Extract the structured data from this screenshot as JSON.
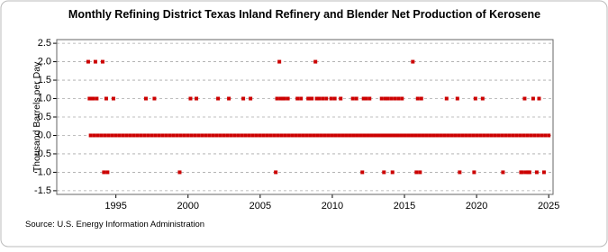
{
  "chart_data": {
    "type": "scatter",
    "title": "Monthly Refining District Texas Inland Refinery and Blender Net Production of Kerosene",
    "y_label": "Thousand Barrels per Day",
    "source": "Source: U.S. Energy Information Administration",
    "color": "#cc0000",
    "grid": true,
    "xlim": [
      1990.9,
      2025.3
    ],
    "xticks": [
      1995,
      2000,
      2005,
      2010,
      2015,
      2020,
      2025
    ],
    "ylim": [
      -1.6,
      2.6
    ],
    "yticks": [
      2.5,
      {
        "value": 2,
        "label": "2.0"
      },
      1.5,
      {
        "value": 1,
        "label": "1.0"
      },
      0.5,
      {
        "value": 0,
        "label": "0.0"
      },
      -0.5,
      {
        "value": -1,
        "label": "-1.0"
      },
      -1.5
    ],
    "x": [
      1993.25,
      1993.5,
      1993.75,
      1994,
      1994.25,
      1994.5,
      1994.75,
      1995,
      1995.25,
      1995.5,
      1995.75,
      1996,
      1996.25,
      1996.5,
      1996.75,
      1997,
      1997.25,
      1997.5,
      1997.75,
      1998,
      1998.25,
      1998.5,
      1998.75,
      1999,
      1999.25,
      1999.5,
      1999.75,
      2000,
      2000.25,
      2000.5,
      2000.75,
      2001,
      2001.25,
      2001.5,
      2001.75,
      2002,
      2002.25,
      2002.5,
      2002.75,
      2003,
      2003.25,
      2003.5,
      2003.75,
      2004,
      2004.25,
      2004.5,
      2004.75,
      2005,
      2005.25,
      2005.5,
      2005.75,
      2006,
      2006.25,
      2006.5,
      2006.75,
      2007,
      2007.25,
      2007.5,
      2007.75,
      2008,
      2008.25,
      2008.5,
      2008.75,
      2009,
      2009.25,
      2009.5,
      2009.75,
      2010,
      2010.25,
      2010.5,
      2010.75,
      2011,
      2011.25,
      2011.5,
      2011.75,
      2012,
      2012.25,
      2012.5,
      2012.75,
      2013,
      2013.25,
      2013.5,
      2013.75,
      2014,
      2014.25,
      2014.5,
      2014.75,
      2015,
      2015.25,
      2015.5,
      2015.75,
      2016,
      2016.25,
      2016.5,
      2016.75,
      2017,
      2017.25,
      2017.5,
      2017.75,
      2018,
      2018.25,
      2018.5,
      2018.75,
      2019,
      2019.25,
      2019.5,
      2019.75,
      2020,
      2020.25,
      2020.5,
      2020.75,
      2021,
      2021.25,
      2021.5,
      2021.75,
      2022,
      2022.25,
      2022.5,
      2022.75,
      2023,
      2023.25,
      2023.5,
      2023.75,
      2024,
      2024.25,
      2024.5,
      2024.75,
      2025,
      1993.08,
      1993.58,
      1994.08,
      2006.33,
      2008.83,
      2015.58,
      1993.17,
      1993.33,
      1993.42,
      1993.67,
      1994.33,
      1994.83,
      1997.08,
      1997.67,
      2000.17,
      2000.58,
      2002.08,
      2002.83,
      2003.83,
      2004.33,
      2006.17,
      2006.42,
      2006.58,
      2006.67,
      2006.92,
      2007.58,
      2007.83,
      2008.33,
      2008.42,
      2008.58,
      2008.92,
      2009.08,
      2009.33,
      2009.58,
      2009.92,
      2010.17,
      2010.58,
      2011.42,
      2011.67,
      2012.17,
      2012.33,
      2012.58,
      2013.42,
      2013.67,
      2013.83,
      2014.08,
      2014.33,
      2014.58,
      2014.83,
      2015.92,
      2016.17,
      2017.92,
      2018.67,
      2019.92,
      2020.42,
      2023.33,
      2023.92,
      2024.33,
      1994.17,
      1994.42,
      1999.42,
      2006.08,
      2012.08,
      2013.58,
      2014.17,
      2015.83,
      2016.08,
      2018.83,
      2019.83,
      2021.83,
      2023.08,
      2023.17,
      2023.42,
      2023.58,
      2023.67,
      2024.17,
      2024.67
    ],
    "values": [
      0,
      0,
      0,
      0,
      0,
      0,
      0,
      0,
      0,
      0,
      0,
      0,
      0,
      0,
      0,
      0,
      0,
      0,
      0,
      0,
      0,
      0,
      0,
      0,
      0,
      0,
      0,
      0,
      0,
      0,
      0,
      0,
      0,
      0,
      0,
      0,
      0,
      0,
      0,
      0,
      0,
      0,
      0,
      0,
      0,
      0,
      0,
      0,
      0,
      0,
      0,
      0,
      0,
      0,
      0,
      0,
      0,
      0,
      0,
      0,
      0,
      0,
      0,
      0,
      0,
      0,
      0,
      0,
      0,
      0,
      0,
      0,
      0,
      0,
      0,
      0,
      0,
      0,
      0,
      0,
      0,
      0,
      0,
      0,
      0,
      0,
      0,
      0,
      0,
      0,
      0,
      0,
      0,
      0,
      0,
      0,
      0,
      0,
      0,
      0,
      0,
      0,
      0,
      0,
      0,
      0,
      0,
      0,
      0,
      0,
      0,
      0,
      0,
      0,
      0,
      0,
      0,
      0,
      0,
      0,
      0,
      0,
      0,
      0,
      0,
      0,
      0,
      0,
      2,
      2,
      2,
      2,
      2,
      2,
      1,
      1,
      1,
      1,
      1,
      1,
      1,
      1,
      1,
      1,
      1,
      1,
      1,
      1,
      1,
      1,
      1,
      1,
      1,
      1,
      1,
      1,
      1,
      1,
      1,
      1,
      1,
      1,
      1,
      1,
      1,
      1,
      1,
      1,
      1,
      1,
      1,
      1,
      1,
      1,
      1,
      1,
      1,
      1,
      1,
      1,
      1,
      1,
      1,
      1,
      1,
      1,
      -1,
      -1,
      -1,
      -1,
      -1,
      -1,
      -1,
      -1,
      -1,
      -1,
      -1,
      -1,
      -1,
      -1,
      -1,
      -1,
      -1,
      -1,
      -1
    ]
  }
}
